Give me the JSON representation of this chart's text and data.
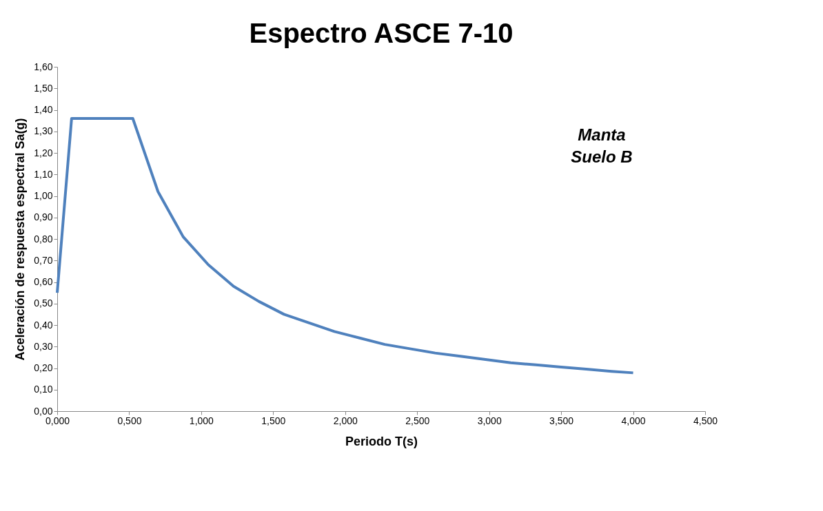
{
  "chart_data": {
    "type": "line",
    "title": "Espectro ASCE 7-10",
    "xlabel": "Periodo  T(s)",
    "ylabel": "Aceleración de respuesta espectral    Sa(g)",
    "x": [
      0,
      0.1,
      0.525,
      0.7,
      0.875,
      1.05,
      1.225,
      1.4,
      1.575,
      1.75,
      1.925,
      2.1,
      2.275,
      2.45,
      2.625,
      2.8,
      2.975,
      3.15,
      3.325,
      3.5,
      3.675,
      3.85,
      4.0
    ],
    "series": [
      {
        "color": "#4f81bd",
        "values": [
          0.55,
          1.36,
          1.36,
          1.02,
          0.81,
          0.68,
          0.58,
          0.51,
          0.45,
          0.41,
          0.37,
          0.34,
          0.31,
          0.29,
          0.27,
          0.255,
          0.24,
          0.225,
          0.215,
          0.205,
          0.195,
          0.185,
          0.178
        ]
      }
    ],
    "xlim": [
      0,
      4.5
    ],
    "ylim": [
      0,
      1.6
    ],
    "xticks": [
      {
        "value": 0,
        "label": "0,000"
      },
      {
        "value": 0.5,
        "label": "0,500"
      },
      {
        "value": 1,
        "label": "1,000"
      },
      {
        "value": 1.5,
        "label": "1,500"
      },
      {
        "value": 2,
        "label": "2,000"
      },
      {
        "value": 2.5,
        "label": "2,500"
      },
      {
        "value": 3,
        "label": "3,000"
      },
      {
        "value": 3.5,
        "label": "3,500"
      },
      {
        "value": 4,
        "label": "4,000"
      },
      {
        "value": 4.5,
        "label": "4,500"
      }
    ],
    "yticks": [
      {
        "value": 0,
        "label": "0,00"
      },
      {
        "value": 0.1,
        "label": "0,10"
      },
      {
        "value": 0.2,
        "label": "0,20"
      },
      {
        "value": 0.3,
        "label": "0,30"
      },
      {
        "value": 0.4,
        "label": "0,40"
      },
      {
        "value": 0.5,
        "label": "0,50"
      },
      {
        "value": 0.6,
        "label": "0,60"
      },
      {
        "value": 0.7,
        "label": "0,70"
      },
      {
        "value": 0.8,
        "label": "0,80"
      },
      {
        "value": 0.9,
        "label": "0,90"
      },
      {
        "value": 1.0,
        "label": "1,00"
      },
      {
        "value": 1.1,
        "label": "1,10"
      },
      {
        "value": 1.2,
        "label": "1,20"
      },
      {
        "value": 1.3,
        "label": "1,30"
      },
      {
        "value": 1.4,
        "label": "1,40"
      },
      {
        "value": 1.5,
        "label": "1,50"
      },
      {
        "value": 1.6,
        "label": "1,60"
      }
    ],
    "annotations": [
      "Manta",
      "Suelo B"
    ],
    "grid": false,
    "marker": "none",
    "line_style": "solid"
  }
}
